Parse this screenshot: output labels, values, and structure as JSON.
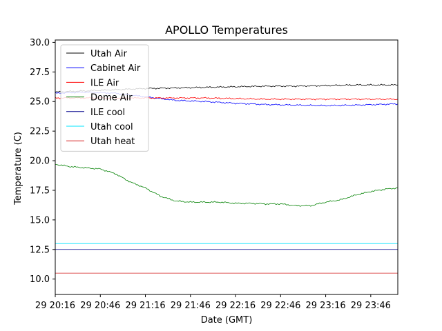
{
  "chart_data": {
    "type": "line",
    "title": "APOLLO Temperatures",
    "xlabel": "Date (GMT)",
    "ylabel": "Temperature (C)",
    "x_domain_minutes": [
      0,
      228
    ],
    "ylim": [
      8.7,
      30.2
    ],
    "x_tick_labels": [
      {
        "value": 0,
        "label": "29 20:16"
      },
      {
        "value": 30,
        "label": "29 20:46"
      },
      {
        "value": 60,
        "label": "29 21:16"
      },
      {
        "value": 90,
        "label": "29 21:46"
      },
      {
        "value": 120,
        "label": "29 22:16"
      },
      {
        "value": 150,
        "label": "29 22:46"
      },
      {
        "value": 180,
        "label": "29 23:16"
      },
      {
        "value": 210,
        "label": "29 23:46"
      }
    ],
    "y_ticks": [
      10.0,
      12.5,
      15.0,
      17.5,
      20.0,
      22.5,
      25.0,
      27.5,
      30.0
    ],
    "y_tick_labels": [
      "10.0",
      "12.5",
      "15.0",
      "17.5",
      "20.0",
      "22.5",
      "25.0",
      "27.5",
      "30.0"
    ],
    "legend_position": "top-left",
    "series": [
      {
        "name": "Utah Air",
        "color": "#000000",
        "x": [
          0,
          20,
          40,
          60,
          80,
          100,
          120,
          140,
          160,
          180,
          200,
          228
        ],
        "y": [
          25.8,
          25.9,
          26.0,
          26.1,
          26.15,
          26.2,
          26.25,
          26.3,
          26.3,
          26.35,
          26.4,
          26.4
        ]
      },
      {
        "name": "Cabinet Air",
        "color": "#0000ff",
        "x": [
          0,
          20,
          40,
          60,
          80,
          100,
          120,
          140,
          160,
          180,
          200,
          228
        ],
        "y": [
          25.7,
          25.8,
          25.7,
          25.4,
          25.1,
          25.0,
          24.85,
          24.75,
          24.7,
          24.65,
          24.7,
          24.8
        ]
      },
      {
        "name": "ILE Air",
        "color": "#ff0000",
        "x": [
          0,
          20,
          40,
          60,
          80,
          100,
          120,
          140,
          160,
          180,
          200,
          228
        ],
        "y": [
          25.3,
          25.3,
          25.3,
          25.3,
          25.3,
          25.3,
          25.25,
          25.2,
          25.2,
          25.2,
          25.2,
          25.2
        ]
      },
      {
        "name": "Dome Air",
        "color": "#008000",
        "x": [
          0,
          10,
          20,
          30,
          40,
          50,
          60,
          70,
          80,
          90,
          100,
          110,
          120,
          130,
          140,
          150,
          160,
          170,
          180,
          190,
          200,
          210,
          220,
          228
        ],
        "y": [
          19.7,
          19.5,
          19.4,
          19.3,
          18.9,
          18.2,
          17.7,
          17.0,
          16.6,
          16.5,
          16.5,
          16.5,
          16.4,
          16.4,
          16.35,
          16.35,
          16.2,
          16.2,
          16.5,
          16.7,
          17.1,
          17.4,
          17.6,
          17.7
        ]
      },
      {
        "name": "ILE cool",
        "color": "#00008b",
        "x": [
          0,
          228
        ],
        "y": [
          12.5,
          12.5
        ]
      },
      {
        "name": "Utah cool",
        "color": "#00e5ff",
        "x": [
          0,
          228
        ],
        "y": [
          13.0,
          13.0
        ]
      },
      {
        "name": "Utah heat",
        "color": "#d62020",
        "x": [
          0,
          228
        ],
        "y": [
          10.5,
          10.5
        ]
      }
    ]
  }
}
